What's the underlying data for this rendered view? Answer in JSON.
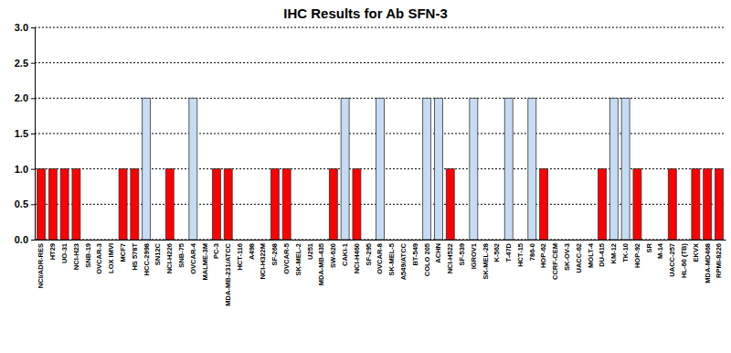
{
  "chart_data": {
    "type": "bar",
    "title": "IHC Results for Ab SFN-3",
    "categories": [
      "NCI/ADR-RES",
      "HT29",
      "UO-31",
      "NCI-H23",
      "SNB-19",
      "OVCAR-3",
      "LOX IMVI",
      "MCF7",
      "HS 578T",
      "HCC-2998",
      "SN12C",
      "NCI-H226",
      "SNB-75",
      "OVCAR-4",
      "MALME-3M",
      "PC-3",
      "MDA-MB-231/ATCC",
      "HCT-116",
      "A498",
      "NCI-H322M",
      "SF-268",
      "OVCAR-5",
      "SK-MEL-2",
      "U251",
      "MDA-MB-435",
      "SW-620",
      "CAKI-1",
      "NCI-H460",
      "SF-295",
      "OVCAR-8",
      "SK-MEL-5",
      "A549/ATCC",
      "BT-549",
      "COLO 205",
      "ACHN",
      "NCI-H522",
      "SF-539",
      "IGROV1",
      "SK-MEL-28",
      "K-562",
      "T-47D",
      "HCT-15",
      "786-0",
      "HOP-62",
      "CCRF-CEM",
      "SK-OV-3",
      "UACC-62",
      "MOLT-4",
      "DU-415",
      "KM-12",
      "TK-10",
      "HOP-92",
      "SR",
      "M-14",
      "UACC-257",
      "HL-60 (TB)",
      "EKVX",
      "MDA-MD468",
      "RPMI-8226"
    ],
    "values": [
      1,
      1,
      1,
      1,
      0,
      0,
      0,
      1,
      1,
      2,
      0,
      1,
      0,
      2,
      0,
      1,
      1,
      0,
      0,
      0,
      1,
      1,
      0,
      0,
      0,
      1,
      2,
      1,
      0,
      2,
      0,
      0,
      0,
      2,
      2,
      1,
      0,
      2,
      0,
      0,
      2,
      0,
      2,
      1,
      0,
      0,
      0,
      0,
      1,
      2,
      2,
      1,
      0,
      0,
      1,
      0,
      1,
      1,
      1
    ],
    "colors": [
      "#ff0000",
      "#ff0000",
      "#ff0000",
      "#ff0000",
      "#ff0000",
      "#ff0000",
      "#ff0000",
      "#ff0000",
      "#ff0000",
      "#c6dcf4",
      "#ff0000",
      "#ff0000",
      "#ff0000",
      "#c6dcf4",
      "#ff0000",
      "#ff0000",
      "#ff0000",
      "#ff0000",
      "#ff0000",
      "#ff0000",
      "#ff0000",
      "#ff0000",
      "#ff0000",
      "#ff0000",
      "#ff0000",
      "#ff0000",
      "#c6dcf4",
      "#ff0000",
      "#ff0000",
      "#c6dcf4",
      "#ff0000",
      "#ff0000",
      "#ff0000",
      "#c6dcf4",
      "#c6dcf4",
      "#ff0000",
      "#ff0000",
      "#c6dcf4",
      "#ff0000",
      "#ff0000",
      "#c6dcf4",
      "#ff0000",
      "#c6dcf4",
      "#ff0000",
      "#ff0000",
      "#ff0000",
      "#ff0000",
      "#ff0000",
      "#ff0000",
      "#c6dcf4",
      "#c6dcf4",
      "#ff0000",
      "#ff0000",
      "#ff0000",
      "#ff0000",
      "#ff0000",
      "#ff0000",
      "#ff0000",
      "#ff0000"
    ],
    "ylim": [
      0,
      3
    ],
    "yticks": [
      {
        "value": 0,
        "label": "0.0"
      },
      {
        "value": 0.5,
        "label": "0.5"
      },
      {
        "value": 1,
        "label": "1.0"
      },
      {
        "value": 1.5,
        "label": "1.5"
      },
      {
        "value": 2,
        "label": "2.0"
      },
      {
        "value": 2.5,
        "label": "2.5"
      },
      {
        "value": 3,
        "label": "3.0"
      }
    ],
    "grid": true
  }
}
